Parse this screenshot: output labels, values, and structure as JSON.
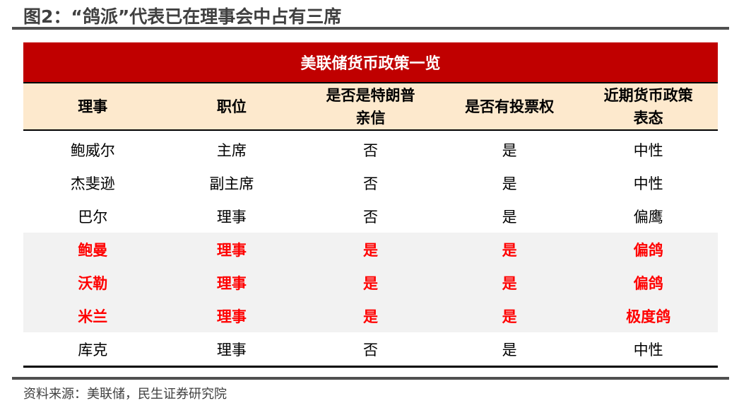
{
  "title": "图2：“鸽派”代表已在理事会中占有三席",
  "table": {
    "caption": "美联储货币政策一览",
    "headers": [
      "理事",
      "职位",
      "是否是特朗普亲信",
      "是否有投票权",
      "近期货币政策表态"
    ],
    "header_lines": [
      [
        "理事"
      ],
      [
        "职位"
      ],
      [
        "是否是特朗普",
        "亲信"
      ],
      [
        "是否有投票权"
      ],
      [
        "近期货币政策",
        "表态"
      ]
    ],
    "rows": [
      {
        "cells": [
          "鲍威尔",
          "主席",
          "否",
          "是",
          "中性"
        ],
        "highlight": false
      },
      {
        "cells": [
          "杰斐逊",
          "副主席",
          "否",
          "是",
          "中性"
        ],
        "highlight": false
      },
      {
        "cells": [
          "巴尔",
          "理事",
          "否",
          "是",
          "偏鹰"
        ],
        "highlight": false
      },
      {
        "cells": [
          "鲍曼",
          "理事",
          "是",
          "是",
          "偏鸽"
        ],
        "highlight": true
      },
      {
        "cells": [
          "沃勒",
          "理事",
          "是",
          "是",
          "偏鸽"
        ],
        "highlight": true
      },
      {
        "cells": [
          "米兰",
          "理事",
          "是",
          "是",
          "极度鸽"
        ],
        "highlight": true
      },
      {
        "cells": [
          "库克",
          "理事",
          "否",
          "是",
          "中性"
        ],
        "highlight": false
      }
    ],
    "colors": {
      "caption_bg": "#C00000",
      "header_bg": "#FDE9CD",
      "highlight_bg": "#F2F2F2",
      "highlight_text": "#FF0000"
    }
  },
  "source": "资料来源：美联储，民生证券研究院"
}
